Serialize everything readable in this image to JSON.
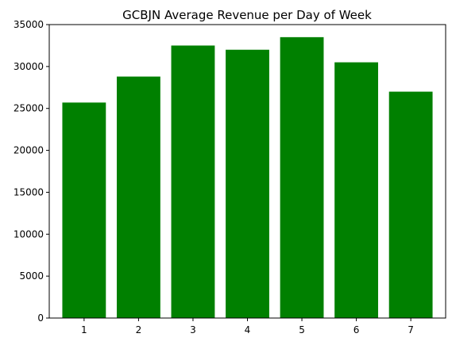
{
  "chart_data": {
    "type": "bar",
    "title": "GCBJN Average Revenue per Day of Week",
    "xlabel": "",
    "ylabel": "",
    "categories": [
      "1",
      "2",
      "3",
      "4",
      "5",
      "6",
      "7"
    ],
    "values": [
      25700,
      28800,
      32500,
      32000,
      33500,
      30500,
      27000
    ],
    "ylim": [
      0,
      35000
    ],
    "yticks": [
      0,
      5000,
      10000,
      15000,
      20000,
      25000,
      30000,
      35000
    ],
    "bar_color": "#008000",
    "grid": false,
    "legend": "none"
  }
}
